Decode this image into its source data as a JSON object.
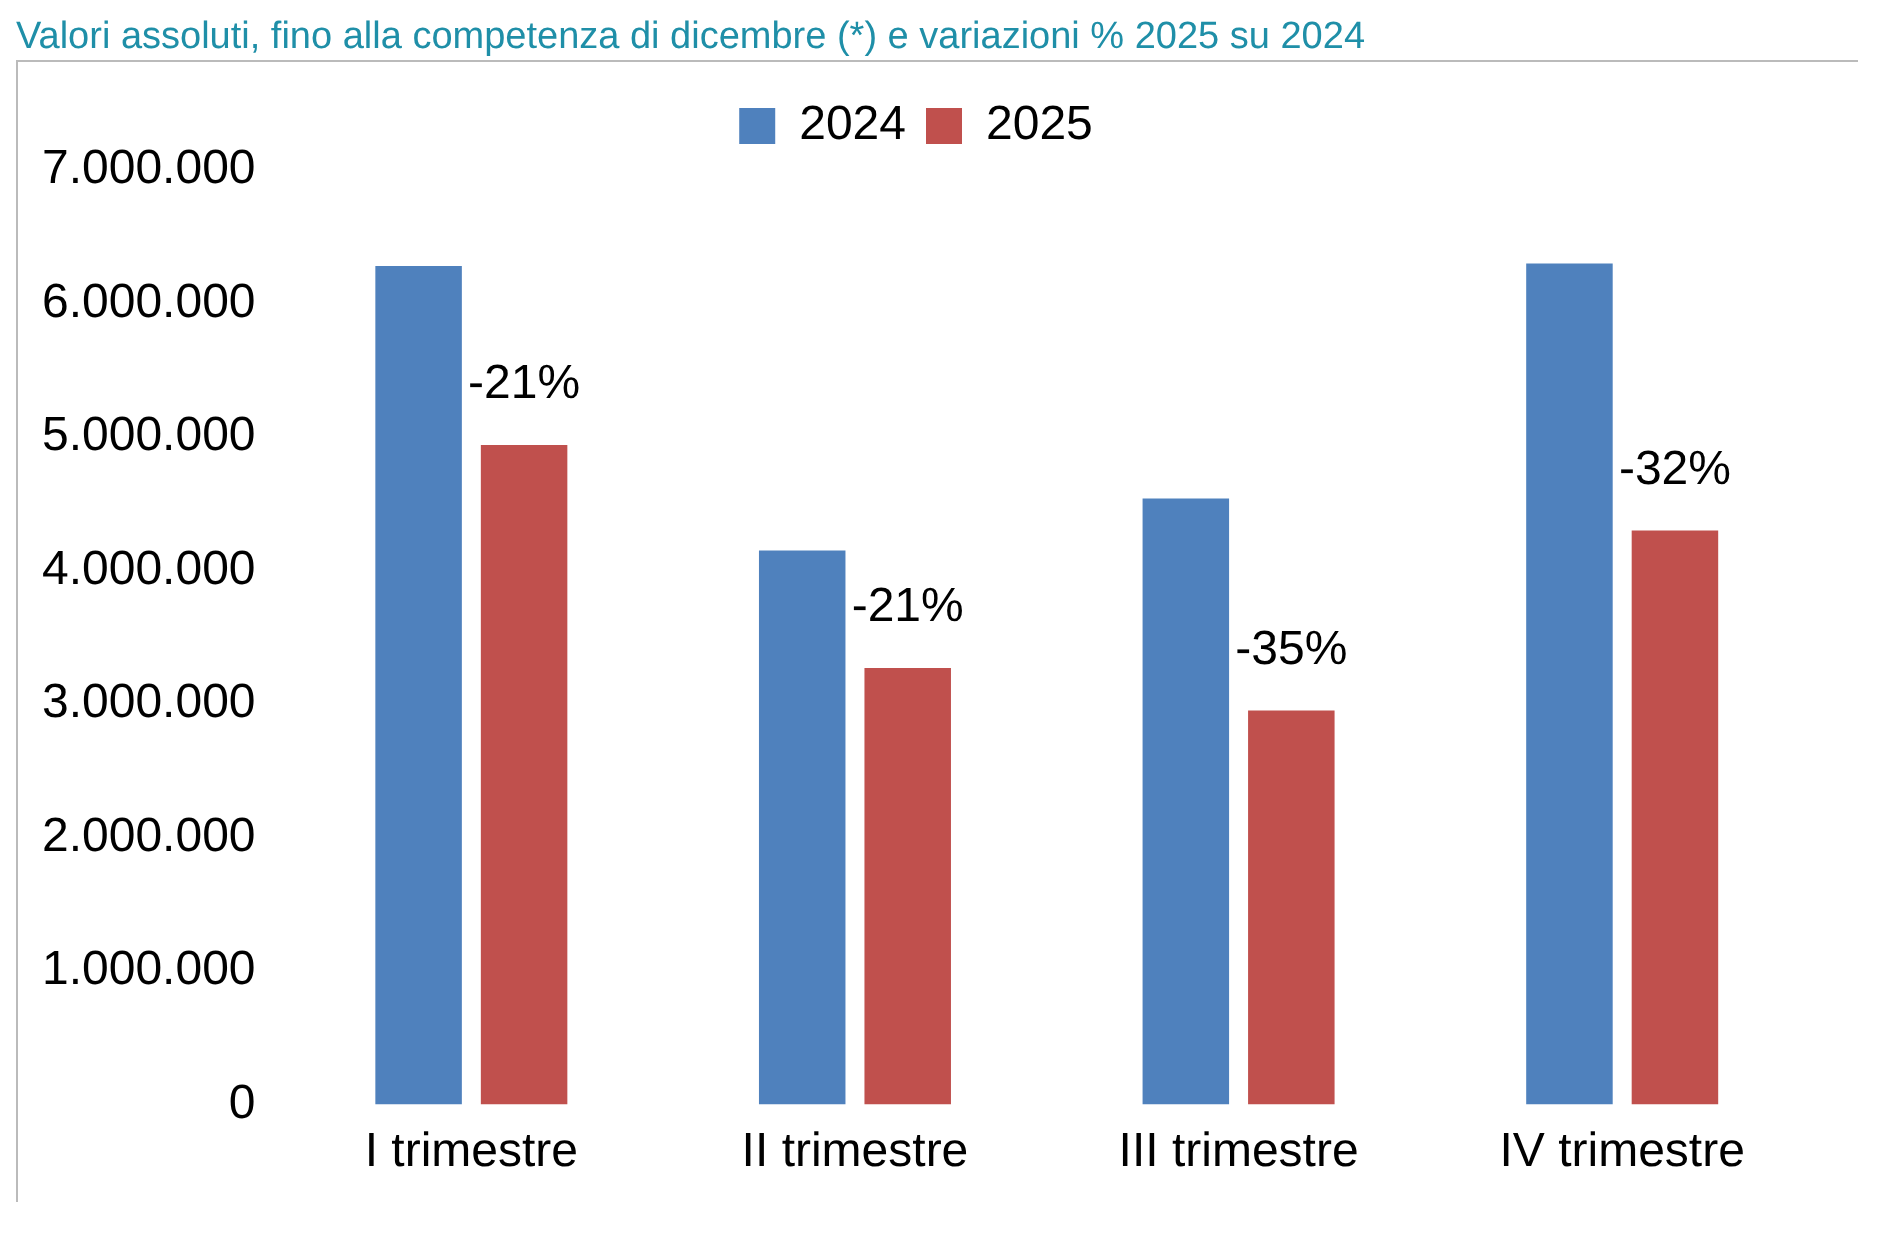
{
  "chart_data": {
    "type": "bar",
    "title": "Valori assoluti, fino alla competenza di dicembre (*) e variazioni % 2025 su 2024",
    "categories": [
      "I trimestre",
      "II trimestre",
      "III trimestre",
      "IV trimestre"
    ],
    "series": [
      {
        "name": "2024",
        "color": "#4f81bd",
        "values": [
          6280000,
          4150000,
          4540000,
          6300000
        ]
      },
      {
        "name": "2025",
        "color": "#c0504d",
        "values": [
          4940000,
          3270000,
          2950000,
          4300000
        ]
      }
    ],
    "annotations": [
      {
        "text": "-21%",
        "x": "I trimestre",
        "y": 4940000
      },
      {
        "text": "-21%",
        "x": "II trimestre",
        "y": 3270000
      },
      {
        "text": "-35%",
        "x": "III trimestre",
        "y": 2950000
      },
      {
        "text": "-32%",
        "x": "IV trimestre",
        "y": 4300000
      }
    ],
    "ylim": [
      0,
      7000000
    ],
    "yticks": [
      {
        "value": 0,
        "label": "0"
      },
      {
        "value": 1000000,
        "label": "1.000.000"
      },
      {
        "value": 2000000,
        "label": "2.000.000"
      },
      {
        "value": 3000000,
        "label": "3.000.000"
      },
      {
        "value": 4000000,
        "label": "4.000.000"
      },
      {
        "value": 5000000,
        "label": "5.000.000"
      },
      {
        "value": 6000000,
        "label": "6.000.000"
      },
      {
        "value": 7000000,
        "label": "7.000.000"
      }
    ],
    "grid": false,
    "legend": "top"
  }
}
